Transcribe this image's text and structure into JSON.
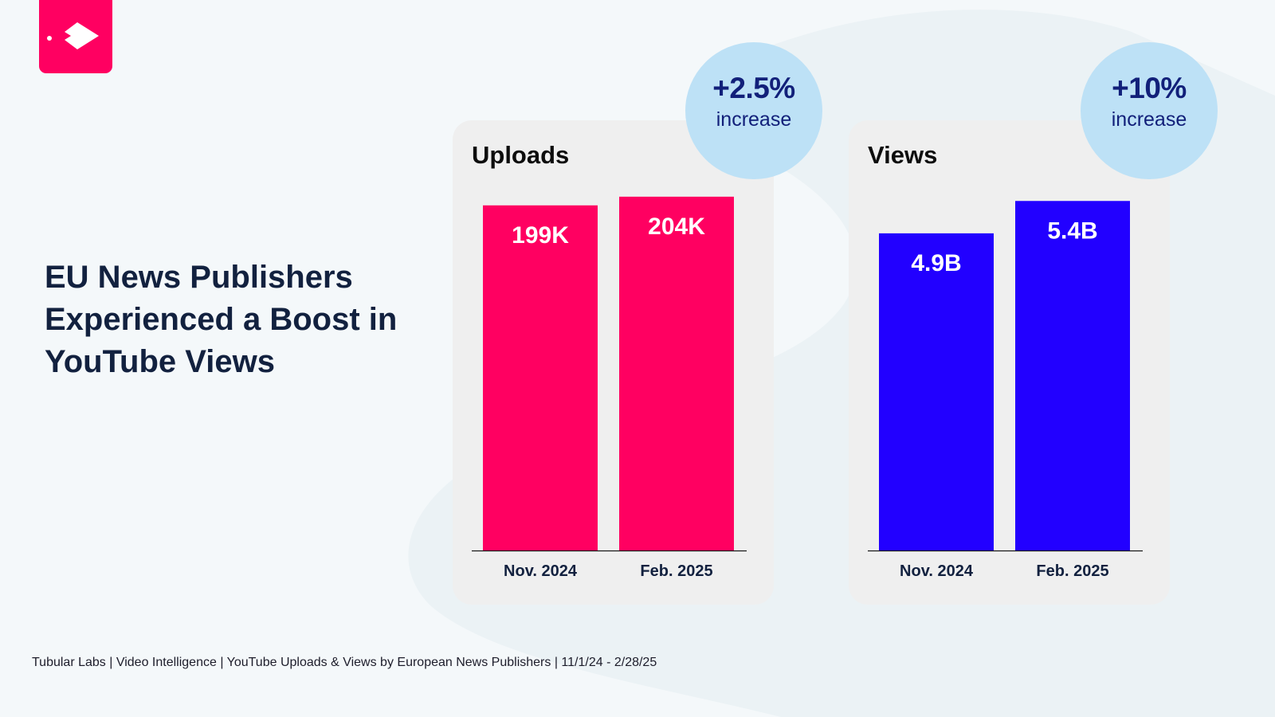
{
  "headline": "EU News Publishers Experienced a Boost in YouTube Views",
  "logo_icon": "tubular-fish-icon",
  "colors": {
    "brand_pink": "#ff0061",
    "uploads_bar": "#ff0061",
    "views_bar": "#2200ff",
    "badge": "#bde1f6",
    "card": "#efefef"
  },
  "badges": {
    "uploads": {
      "pct": "+2.5%",
      "text": "increase"
    },
    "views": {
      "pct": "+10%",
      "text": "increase"
    }
  },
  "chart_data": [
    {
      "type": "bar",
      "title": "Uploads",
      "categories": [
        "Nov. 2024",
        "Feb. 2025"
      ],
      "values": [
        199000,
        204000
      ],
      "value_labels": [
        "199K",
        "204K"
      ],
      "ylim": [
        0,
        209000
      ],
      "grid": false,
      "color": "#ff0061"
    },
    {
      "type": "bar",
      "title": "Views",
      "categories": [
        "Nov. 2024",
        "Feb. 2025"
      ],
      "values": [
        4.9,
        5.4
      ],
      "value_labels": [
        "4.9B",
        "5.4B"
      ],
      "ylim": [
        0,
        5.6
      ],
      "grid": false,
      "color": "#2200ff"
    }
  ],
  "footer": "Tubular Labs | Video Intelligence | YouTube Uploads & Views by European News Publishers | 11/1/24 - 2/28/25"
}
